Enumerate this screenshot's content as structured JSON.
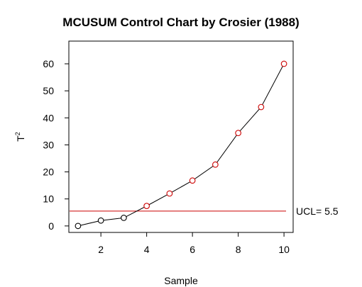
{
  "chart_data": {
    "type": "line",
    "title": "MCUSUM Control Chart by Crosier (1988)",
    "xlabel": "Sample",
    "ylabel_base": "T",
    "ylabel_sup": "2",
    "x": [
      1,
      2,
      3,
      4,
      5,
      6,
      7,
      8,
      9,
      10
    ],
    "values": [
      0,
      2,
      3,
      7.4,
      12,
      16.8,
      22.7,
      34.4,
      44,
      60
    ],
    "xlim": [
      0.6,
      10.4
    ],
    "ylim": [
      -2.4,
      68.4
    ],
    "x_ticks": [
      2,
      4,
      6,
      8,
      10
    ],
    "y_ticks": [
      0,
      10,
      20,
      30,
      40,
      50,
      60
    ],
    "ucl": 5.5,
    "ucl_label": "UCL= 5.5",
    "grid": false,
    "legend": "none",
    "colors": {
      "line": "#000000",
      "in_control_point": "#000000",
      "out_of_control_point": "#cc0000",
      "ucl_line": "#cc0000"
    }
  }
}
